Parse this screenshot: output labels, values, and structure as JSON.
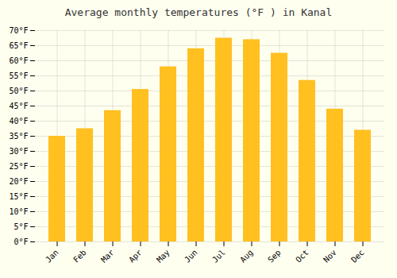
{
  "chart_data": {
    "type": "bar",
    "title": "Average monthly temperatures (°F ) in Kanal",
    "categories": [
      "Jan",
      "Feb",
      "Mar",
      "Apr",
      "May",
      "Jun",
      "Jul",
      "Aug",
      "Sep",
      "Oct",
      "Nov",
      "Dec"
    ],
    "values": [
      35,
      37.5,
      43.5,
      50.5,
      58,
      64,
      67.5,
      67,
      62.5,
      53.5,
      44,
      37
    ],
    "color": "#FFC020",
    "ylim": [
      0,
      70
    ],
    "yticks": [
      {
        "value": 0,
        "label": "0°F"
      },
      {
        "value": 5,
        "label": "5°F"
      },
      {
        "value": 10,
        "label": "10°F"
      },
      {
        "value": 15,
        "label": "15°F"
      },
      {
        "value": 20,
        "label": "20°F"
      },
      {
        "value": 25,
        "label": "25°F"
      },
      {
        "value": 30,
        "label": "30°F"
      },
      {
        "value": 35,
        "label": "35°F"
      },
      {
        "value": 40,
        "label": "40°F"
      },
      {
        "value": 45,
        "label": "45°F"
      },
      {
        "value": 50,
        "label": "50°F"
      },
      {
        "value": 55,
        "label": "55°F"
      },
      {
        "value": 60,
        "label": "60°F"
      },
      {
        "value": 65,
        "label": "65°F"
      },
      {
        "value": 70,
        "label": "70°F"
      }
    ],
    "grid": true
  }
}
